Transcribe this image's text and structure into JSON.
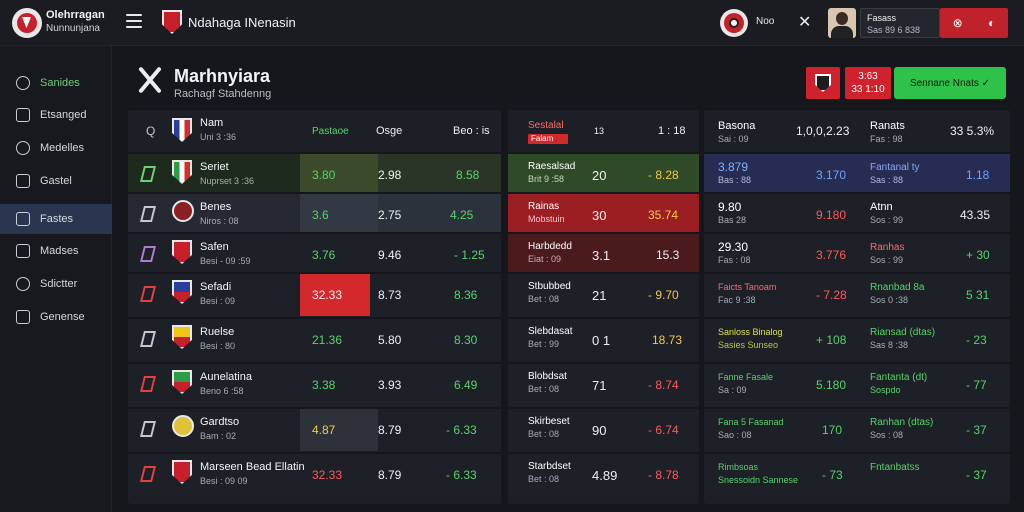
{
  "topbar": {
    "brand_line1": "Olehrragan",
    "brand_line2": "Nunnunjana",
    "page_name": "Ndahaga INenasin",
    "label": "Noo",
    "user_name": "Fasass",
    "user_sub": "Sas 89 6 838",
    "btn_a": "⊗",
    "btn_b": "◐"
  },
  "sidebar": {
    "items": [
      {
        "label": "Sanides"
      },
      {
        "label": "Etsanged"
      },
      {
        "label": "Medelles"
      },
      {
        "label": "Gastel"
      },
      {
        "label": "Fastes"
      },
      {
        "label": "Madses"
      },
      {
        "label": "Sdictter"
      },
      {
        "label": "Genense"
      }
    ]
  },
  "header": {
    "title": "Marhnyiara",
    "subtitle": "Rachagf Stahdenng",
    "score_line1": "3:63",
    "score_line2": "33 1:10",
    "green_button": "Sennane Nnats ✓"
  },
  "panel1": {
    "head": {
      "q": "Q",
      "team": "Nam",
      "team_sub": "Uni 3 :36",
      "c1": "Pastaoe",
      "c2": "Osge",
      "c3": "Beo : is"
    },
    "rows": [
      {
        "team": "Seriet",
        "sub": "Nuprset 3 :36",
        "v1": "3.80",
        "v2": "2.98",
        "v3": "8.58"
      },
      {
        "team": "Benes",
        "sub": "Niros : 08",
        "v1": "3.6",
        "v2": "2.75",
        "v3": "4.25"
      },
      {
        "team": "Safen",
        "sub": "Besi - 09 :59",
        "v1": "3.76",
        "v2": "9.46",
        "v3": "- 1.25"
      },
      {
        "team": "Sefadi",
        "sub": "Besi : 09",
        "v1": "32.33",
        "v2": "8.73",
        "v3": "8.36"
      },
      {
        "team": "Ruelse",
        "sub": "Besi : 80",
        "v1": "21.36",
        "v2": "5.80",
        "v3": "8.30"
      },
      {
        "team": "Aunelatina",
        "sub": "Beno 6 :58",
        "v1": "3.38",
        "v2": "3.93",
        "v3": "6.49"
      },
      {
        "team": "Gardtso",
        "sub": "Bam : 02",
        "v1": "4.87",
        "v2": "8.79",
        "v3": "- 6.33"
      },
      {
        "team": "Marseen Bead Ellatin",
        "sub": "Besi : 09 09",
        "v1": "32.33",
        "v2": "8.79",
        "v3": "- 6.33"
      }
    ]
  },
  "panel2": {
    "head": {
      "t1": "Sestalal",
      "t2": "Falam",
      "t3": "13",
      "t4": "1 : 18"
    },
    "rows": [
      {
        "t1": "Raesalsad",
        "t2": "Brit 9 :58",
        "v1": "20",
        "v2": "- 8.28"
      },
      {
        "t1": "Rainas",
        "t2": "Mobstuin",
        "v1": "30",
        "v2": "35.74"
      },
      {
        "t1": "Harbdedd",
        "t2": "Eiat : 09",
        "v1": "3.1",
        "v2": "15.3"
      },
      {
        "t1": "Stbubbed",
        "t2": "Bet : 08",
        "v1": "21",
        "v2": "- 9.70"
      },
      {
        "t1": "Slebdasat",
        "t2": "Bet : 99",
        "v1": "0 1",
        "v2": "18.73"
      },
      {
        "t1": "Blobdsat",
        "t2": "Bet : 08",
        "v1": "71",
        "v2": "- 8.74"
      },
      {
        "t1": "Skirbeset",
        "t2": "Bet : 08",
        "v1": "90",
        "v2": "- 6.74"
      },
      {
        "t1": "Starbdset",
        "t2": "Bet : 08",
        "v1": "4.89",
        "v2": "- 8.78"
      }
    ]
  },
  "panel3": {
    "head": {
      "a1": "Basona",
      "a2": "Sai : 09",
      "b": "1,0,0,2.23",
      "c1": "Ranats",
      "c2": "Fas : 98",
      "d": "33 5.3%"
    },
    "rows": [
      {
        "a1": "3.879",
        "a2": "Bas : 88",
        "b": "3.170",
        "c1": "Fantanal ty",
        "c2": "Sas : 88",
        "d": "1.18"
      },
      {
        "a1": "9.80",
        "a2": "Bas 28",
        "b": "9.180",
        "c1": "Atnn",
        "c2": "Sos : 99",
        "d": "43.35"
      },
      {
        "a1": "29.30",
        "a2": "Fas : 08",
        "b": "3.776",
        "c1": "Ranhas",
        "c2": "Sos : 99",
        "d": "+ 30"
      },
      {
        "a1": "Faicts Tanoam",
        "a2": "Fac 9 :38",
        "b": "- 7.28",
        "c1": "Rnanbad 8a",
        "c2": "Sos 0 :38",
        "d": "5 31"
      },
      {
        "a1": "Sanloss Binalog",
        "a2": "Sasies Sunseo",
        "b": "+ 108",
        "c1": "Riansad (dtas)",
        "c2": "Sas 8 :38",
        "d": "- 23"
      },
      {
        "a1": "Fanne Fasale",
        "a2": "Sa : 09",
        "b": "5.180",
        "c1": "Fantanta (dt)",
        "c2": "Sospdo",
        "d": "- 77"
      },
      {
        "a1": "Fana 5 Fasanad",
        "a2": "Sao : 08",
        "b": "170",
        "c1": "Ranhan (dtas)",
        "c2": "Sos : 08",
        "d": "- 37"
      },
      {
        "a1": "Rimbsoas",
        "a2": "Snessoidn Sannese",
        "b": "- 73",
        "c1": "Fntanbatss",
        "c2": "",
        "d": "- 37"
      }
    ]
  }
}
